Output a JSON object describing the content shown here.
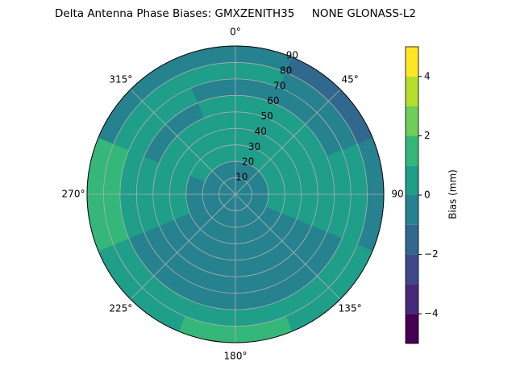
{
  "chart_data": {
    "type": "polar-contour",
    "title": "Delta Antenna Phase Biases: GMXZENITH35     NONE GLONASS-L2",
    "azimuth": [
      0,
      45,
      90,
      135,
      180,
      225,
      270,
      315
    ],
    "zenith": [
      5,
      15,
      25,
      35,
      45,
      55,
      65,
      75,
      85
    ],
    "values": [
      [
        -0.5,
        -0.5,
        0.5,
        0.5,
        0.5,
        0.5,
        -0.5,
        0.5,
        -0.5
      ],
      [
        -0.5,
        -0.5,
        0.5,
        0.5,
        0.5,
        0.5,
        -0.5,
        -0.5,
        -1.5
      ],
      [
        -0.5,
        -0.5,
        0.5,
        0.5,
        0.5,
        0.5,
        0.5,
        0.5,
        -0.5
      ],
      [
        -0.5,
        -0.5,
        -0.5,
        -0.5,
        -0.5,
        -0.5,
        -0.5,
        0.5,
        0.5
      ],
      [
        -0.5,
        -0.5,
        -0.5,
        -0.5,
        -0.5,
        -0.5,
        -0.5,
        0.5,
        1.5
      ],
      [
        -0.5,
        -0.5,
        -0.5,
        -0.5,
        -0.5,
        -0.5,
        -0.5,
        0.5,
        0.5
      ],
      [
        -0.5,
        -0.5,
        -0.5,
        0.5,
        0.5,
        0.5,
        0.5,
        1.5,
        1.5
      ],
      [
        -0.5,
        -0.5,
        0.5,
        0.5,
        0.5,
        -0.5,
        0.5,
        0.5,
        -0.5
      ]
    ],
    "rlim": [
      0,
      90
    ],
    "rticks": [
      10,
      20,
      30,
      40,
      50,
      60,
      70,
      80,
      90
    ],
    "thetaticks": [
      {
        "value": 0,
        "label": "0°"
      },
      {
        "value": 45,
        "label": "45°"
      },
      {
        "value": 90,
        "label": "90"
      },
      {
        "value": 135,
        "label": "135°"
      },
      {
        "value": 180,
        "label": "180°"
      },
      {
        "value": 225,
        "label": "225°"
      },
      {
        "value": 270,
        "label": "270°"
      },
      {
        "value": 315,
        "label": "315°"
      }
    ],
    "levels": [
      -5,
      -4,
      -3,
      -2,
      -1,
      0,
      1,
      2,
      3,
      4,
      5
    ],
    "colors": [
      "#440154",
      "#482878",
      "#3e4989",
      "#31688e",
      "#26828e",
      "#1f9e89",
      "#35b779",
      "#6ece58",
      "#b5de2b",
      "#fde725"
    ],
    "colorbar_label": "Bias (mm)",
    "cticks": [
      {
        "value": -4,
        "label": "−4"
      },
      {
        "value": -2,
        "label": "−2"
      },
      {
        "value": 0,
        "label": "0"
      },
      {
        "value": 2,
        "label": "2"
      },
      {
        "value": 4,
        "label": "4"
      }
    ],
    "grid": true
  }
}
